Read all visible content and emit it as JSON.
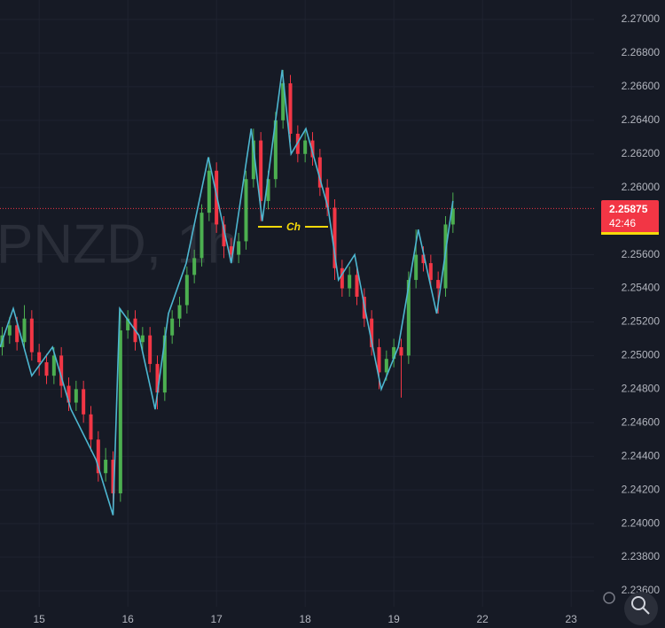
{
  "chart_data": {
    "type": "candlestick",
    "watermark": "PNZD, 1h",
    "x": [
      -5,
      -4,
      -3,
      -2,
      -1,
      0,
      1,
      2,
      3,
      4,
      5,
      6,
      7,
      8,
      9,
      10,
      11,
      12,
      13,
      14,
      15,
      16,
      17,
      18,
      19,
      20,
      21,
      22,
      23,
      24,
      25,
      26,
      27,
      28,
      29,
      30,
      31,
      32,
      33,
      34,
      35,
      36,
      37,
      38,
      39,
      40,
      41,
      42,
      43,
      44,
      45,
      46,
      47,
      48,
      49,
      50,
      51,
      52,
      53,
      54,
      55,
      56
    ],
    "open": [
      2.2505,
      2.2512,
      2.2518,
      2.2508,
      2.2522,
      2.2502,
      2.2496,
      2.2488,
      2.25,
      2.2482,
      2.2472,
      2.248,
      2.2465,
      2.245,
      2.243,
      2.2438,
      2.2418,
      2.2515,
      2.2522,
      2.2508,
      2.2512,
      2.2495,
      2.2478,
      2.2512,
      2.2522,
      2.253,
      2.2548,
      2.2558,
      2.2585,
      2.261,
      2.2578,
      2.2565,
      2.256,
      2.2568,
      2.2605,
      2.2628,
      2.2592,
      2.2605,
      2.264,
      2.2662,
      2.2632,
      2.262,
      2.2628,
      2.2618,
      2.26,
      2.2588,
      2.2552,
      2.254,
      2.2548,
      2.2535,
      2.2522,
      2.2505,
      2.249,
      2.2498,
      2.2505,
      2.25,
      2.2545,
      2.256,
      2.2555,
      2.2545,
      2.254,
      2.2578
    ],
    "high": [
      2.2517,
      2.2523,
      2.2523,
      2.253,
      2.2527,
      2.2507,
      2.2501,
      2.2505,
      2.2505,
      2.2487,
      2.2485,
      2.2485,
      2.247,
      2.2455,
      2.2445,
      2.2443,
      2.2528,
      2.2527,
      2.2527,
      2.2517,
      2.2517,
      2.25,
      2.2517,
      2.2527,
      2.2535,
      2.2553,
      2.2563,
      2.259,
      2.2618,
      2.2615,
      2.2583,
      2.257,
      2.2573,
      2.261,
      2.2635,
      2.2633,
      2.261,
      2.2645,
      2.267,
      2.2667,
      2.2637,
      2.2635,
      2.2633,
      2.2623,
      2.2605,
      2.2593,
      2.2557,
      2.2553,
      2.2553,
      2.254,
      2.2527,
      2.251,
      2.2503,
      2.251,
      2.251,
      2.255,
      2.2575,
      2.2565,
      2.256,
      2.255,
      2.2583,
      2.2597
    ],
    "low": [
      2.25,
      2.2507,
      2.2503,
      2.2503,
      2.2497,
      2.2488,
      2.2483,
      2.2483,
      2.2475,
      2.2467,
      2.2467,
      2.246,
      2.2443,
      2.2425,
      2.2425,
      2.2405,
      2.2413,
      2.251,
      2.2503,
      2.2503,
      2.249,
      2.2468,
      2.2473,
      2.2507,
      2.2517,
      2.2525,
      2.2543,
      2.2553,
      2.258,
      2.2573,
      2.2558,
      2.2555,
      2.2555,
      2.2563,
      2.26,
      2.258,
      2.2587,
      2.26,
      2.2635,
      2.2627,
      2.2615,
      2.2615,
      2.2613,
      2.2595,
      2.2583,
      2.2545,
      2.2535,
      2.2535,
      2.253,
      2.2517,
      2.25,
      2.248,
      2.2485,
      2.2493,
      2.2475,
      2.2495,
      2.254,
      2.255,
      2.254,
      2.2525,
      2.2535,
      2.2573
    ],
    "close": [
      2.2512,
      2.2518,
      2.2508,
      2.2522,
      2.2502,
      2.2496,
      2.2488,
      2.25,
      2.2482,
      2.2472,
      2.248,
      2.2465,
      2.245,
      2.243,
      2.2438,
      2.2418,
      2.2515,
      2.2522,
      2.2508,
      2.2512,
      2.2495,
      2.2478,
      2.2512,
      2.2522,
      2.253,
      2.2548,
      2.2558,
      2.2585,
      2.261,
      2.2578,
      2.2565,
      2.256,
      2.2568,
      2.2605,
      2.2628,
      2.2592,
      2.2605,
      2.264,
      2.2662,
      2.2632,
      2.262,
      2.2628,
      2.2618,
      2.26,
      2.2588,
      2.2552,
      2.254,
      2.2548,
      2.2535,
      2.2522,
      2.2505,
      2.249,
      2.2498,
      2.2505,
      2.25,
      2.2545,
      2.256,
      2.2555,
      2.2545,
      2.254,
      2.2578,
      2.25875
    ],
    "up_color": "#4caf50",
    "down_color": "#f23645",
    "zigzag": {
      "color": "#4db6d0",
      "x": [
        -5.3,
        -3.5,
        -1.0,
        1.8,
        4.3,
        7.7,
        10.0,
        10.9,
        13.5,
        15.7,
        17.5,
        19.9,
        22.9,
        26.0,
        28.7,
        30.2,
        32.9,
        34.1,
        36.1,
        39.1,
        40.5,
        42.7,
        44.0,
        46.3,
        48.6,
        51.3,
        53.8,
        56.0
      ],
      "values": [
        2.2505,
        2.2528,
        2.2488,
        2.2505,
        2.2468,
        2.2438,
        2.2405,
        2.2528,
        2.2512,
        2.2468,
        2.2525,
        2.2555,
        2.2618,
        2.2555,
        2.2635,
        2.258,
        2.267,
        2.262,
        2.2635,
        2.2588,
        2.2545,
        2.256,
        2.253,
        2.248,
        2.2505,
        2.2575,
        2.2525,
        2.2592
      ]
    },
    "annotation": "Ch",
    "last_price": 2.25875,
    "countdown": "42:46",
    "xlim": [
      -5.3,
      75.1
    ],
    "xticks": [
      {
        "value": 0,
        "label": "15"
      },
      {
        "value": 12,
        "label": "16"
      },
      {
        "value": 24,
        "label": "17"
      },
      {
        "value": 36,
        "label": "18"
      },
      {
        "value": 48,
        "label": "19"
      },
      {
        "value": 60,
        "label": "22"
      },
      {
        "value": 72,
        "label": "23"
      }
    ],
    "ylim": [
      2.236,
      2.27
    ],
    "yticks": [
      {
        "value": 2.27,
        "label": "2.27000"
      },
      {
        "value": 2.268,
        "label": "2.26800"
      },
      {
        "value": 2.266,
        "label": "2.26600"
      },
      {
        "value": 2.264,
        "label": "2.26400"
      },
      {
        "value": 2.262,
        "label": "2.26200"
      },
      {
        "value": 2.26,
        "label": "2.26000"
      },
      {
        "value": 2.256,
        "label": "2.25600"
      },
      {
        "value": 2.254,
        "label": "2.25400"
      },
      {
        "value": 2.252,
        "label": "2.25200"
      },
      {
        "value": 2.25,
        "label": "2.25000"
      },
      {
        "value": 2.248,
        "label": "2.24800"
      },
      {
        "value": 2.246,
        "label": "2.24600"
      },
      {
        "value": 2.244,
        "label": "2.24400"
      },
      {
        "value": 2.242,
        "label": "2.24200"
      },
      {
        "value": 2.24,
        "label": "2.24000"
      },
      {
        "value": 2.238,
        "label": "2.23800"
      },
      {
        "value": 2.236,
        "label": "2.23600"
      }
    ],
    "grid": true
  }
}
